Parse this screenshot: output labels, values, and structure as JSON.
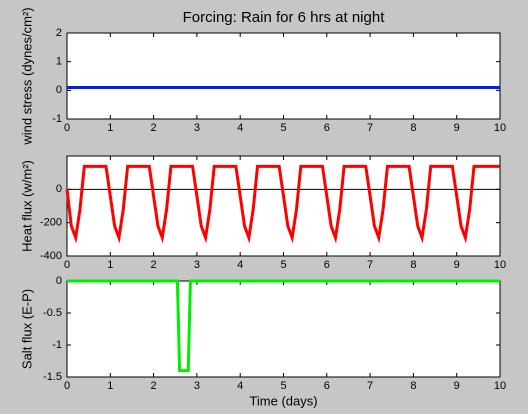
{
  "chart_data": [
    {
      "type": "line",
      "title": "Forcing: Rain for 6 hrs at night",
      "ylabel": "wind stress (dynes/cm²)",
      "x": [
        0,
        10
      ],
      "values": [
        0.1,
        0.1
      ],
      "color": "#0022dd",
      "xlim": [
        0,
        10
      ],
      "xticks": [
        0,
        1,
        2,
        3,
        4,
        5,
        6,
        7,
        8,
        9,
        10
      ],
      "ylim": [
        -1,
        2
      ],
      "yticks": [
        -1,
        0,
        1,
        2
      ]
    },
    {
      "type": "line",
      "ylabel": "Heat flux (w/m²)",
      "x": [
        0,
        0.1,
        0.2,
        0.3,
        0.4,
        0.5,
        0.6,
        0.7,
        0.8,
        0.9,
        1,
        1.1,
        1.2,
        1.3,
        1.4,
        1.5,
        1.6,
        1.7,
        1.8,
        1.9,
        2,
        2.1,
        2.2,
        2.3,
        2.4,
        2.5,
        2.6,
        2.7,
        2.8,
        2.9,
        3,
        3.1,
        3.2,
        3.3,
        3.4,
        3.5,
        3.6,
        3.7,
        3.8,
        3.9,
        4,
        4.1,
        4.2,
        4.3,
        4.4,
        4.5,
        4.6,
        4.7,
        4.8,
        4.9,
        5,
        5.1,
        5.2,
        5.3,
        5.4,
        5.5,
        5.6,
        5.7,
        5.8,
        5.9,
        6,
        6.1,
        6.2,
        6.3,
        6.4,
        6.5,
        6.6,
        6.7,
        6.8,
        6.9,
        7,
        7.1,
        7.2,
        7.3,
        7.4,
        7.5,
        7.6,
        7.7,
        7.8,
        7.9,
        8,
        8.1,
        8.2,
        8.3,
        8.4,
        8.5,
        8.6,
        8.7,
        8.8,
        8.9,
        9,
        9.1,
        9.2,
        9.3,
        9.4,
        9.5,
        9.6,
        9.7,
        9.8,
        9.9,
        10
      ],
      "values": [
        0,
        -220,
        -290,
        -120,
        138,
        138,
        138,
        138,
        138,
        138,
        -40,
        -220,
        -290,
        -120,
        138,
        138,
        138,
        138,
        138,
        138,
        -40,
        -220,
        -290,
        -120,
        138,
        138,
        138,
        138,
        138,
        138,
        -40,
        -220,
        -290,
        -120,
        138,
        138,
        138,
        138,
        138,
        138,
        -40,
        -220,
        -290,
        -120,
        138,
        138,
        138,
        138,
        138,
        138,
        -40,
        -220,
        -290,
        -120,
        138,
        138,
        138,
        138,
        138,
        138,
        -40,
        -220,
        -290,
        -120,
        138,
        138,
        138,
        138,
        138,
        138,
        -40,
        -220,
        -290,
        -120,
        138,
        138,
        138,
        138,
        138,
        138,
        -40,
        -220,
        -290,
        -120,
        138,
        138,
        138,
        138,
        138,
        138,
        -40,
        -220,
        -290,
        -120,
        138,
        138,
        138,
        138,
        138,
        138,
        138
      ],
      "color": "#ff0000",
      "hline": 0,
      "xlim": [
        0,
        10
      ],
      "xticks": [
        0,
        1,
        2,
        3,
        4,
        5,
        6,
        7,
        8,
        9,
        10
      ],
      "ylim": [
        -400,
        200
      ],
      "yticks": [
        -400,
        -200,
        0
      ]
    },
    {
      "type": "line",
      "ylabel": "Salt flux (E-P)",
      "xlabel": "Time (days)",
      "x": [
        0,
        2.55,
        2.6,
        2.8,
        2.85,
        10
      ],
      "values": [
        0,
        0,
        -1.4,
        -1.4,
        0,
        0
      ],
      "color": "#00ee00",
      "xlim": [
        0,
        10
      ],
      "xticks": [
        0,
        1,
        2,
        3,
        4,
        5,
        6,
        7,
        8,
        9,
        10
      ],
      "ylim": [
        -1.5,
        0
      ],
      "yticks": [
        -1.5,
        -1,
        -0.5,
        0
      ]
    }
  ]
}
